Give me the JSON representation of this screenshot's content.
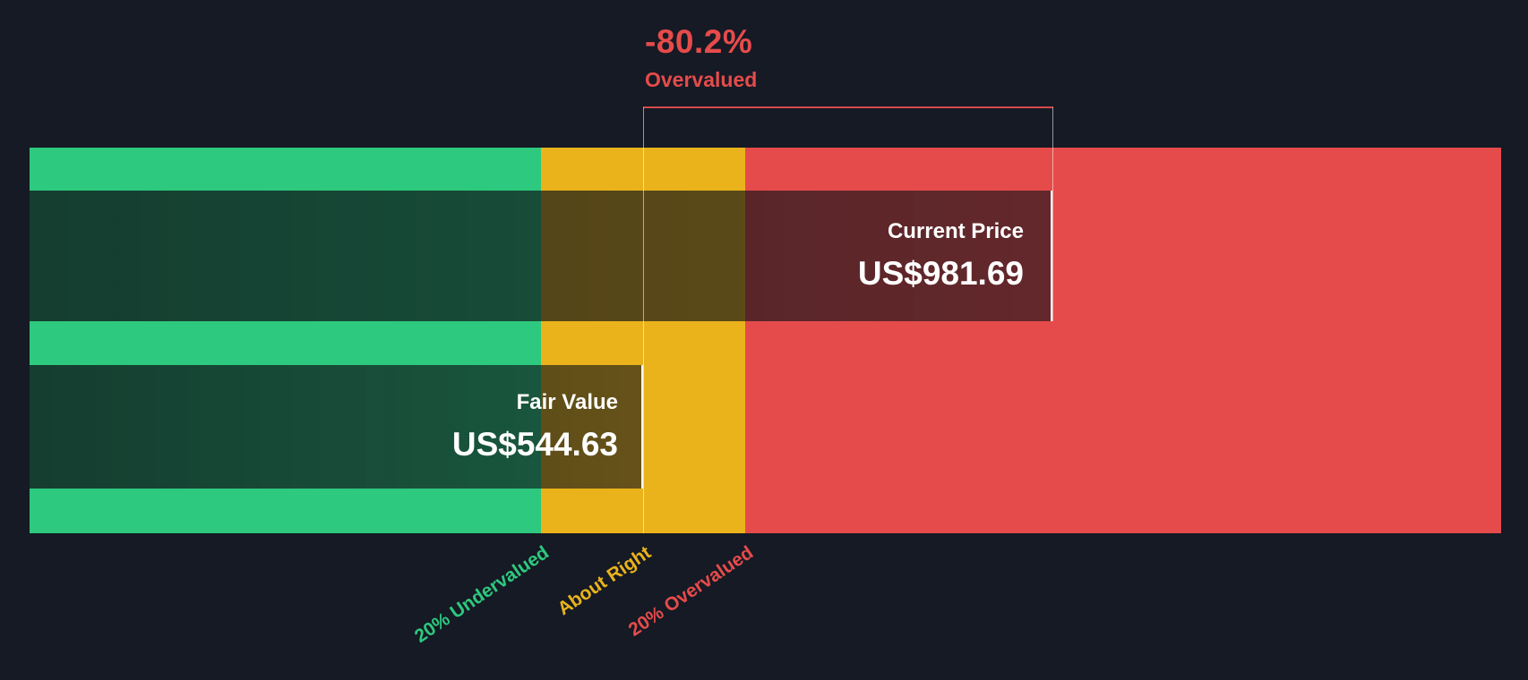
{
  "chart_data": {
    "type": "bar",
    "subtype": "fair-value-comparison-gauge",
    "background": "#151a24",
    "annotation": {
      "value": "-80.2%",
      "label": "Overvalued",
      "color": "#e64b4b"
    },
    "bars": [
      {
        "label": "Current Price",
        "display_value": "US$981.69",
        "value": 981.69
      },
      {
        "label": "Fair Value",
        "display_value": "US$544.63",
        "value": 544.63
      }
    ],
    "zones": [
      {
        "label": "20% Undervalued",
        "color": "#2dc97e"
      },
      {
        "label": "About Right",
        "color": "#eab31b"
      },
      {
        "label": "20% Overvalued",
        "color": "#e64b4b"
      }
    ],
    "legend_position": "below"
  }
}
